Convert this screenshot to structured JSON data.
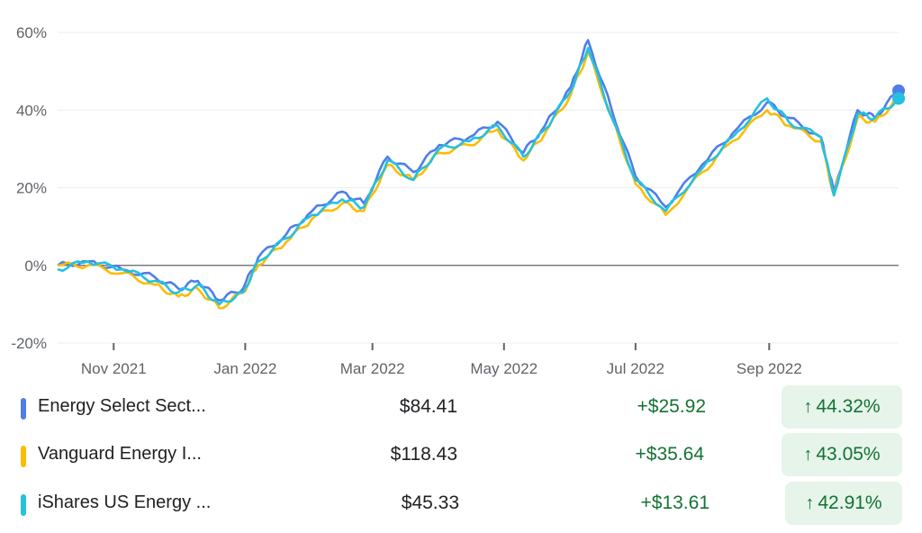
{
  "chart_data": {
    "type": "line",
    "ylim": [
      -20,
      60
    ],
    "y_ticks": [
      "60%",
      "40%",
      "20%",
      "0%",
      "-20%"
    ],
    "y_tick_values": [
      60,
      40,
      20,
      0,
      -20
    ],
    "x_ticks": [
      "Nov 2021",
      "Jan 2022",
      "Mar 2022",
      "May 2022",
      "Jul 2022",
      "Sep 2022"
    ],
    "x_tick_dates": [
      "2021-11-01",
      "2022-01-01",
      "2022-03-01",
      "2022-05-01",
      "2022-07-01",
      "2022-09-01"
    ],
    "x_range": [
      "2021-10-06",
      "2022-10-31"
    ],
    "grid": true,
    "series": [
      {
        "name": "Energy Select Sect...",
        "color": "#4f7ee8",
        "points": [
          [
            "2021-10-06",
            0
          ],
          [
            "2021-10-20",
            1
          ],
          [
            "2021-11-05",
            -1
          ],
          [
            "2021-11-20",
            -3
          ],
          [
            "2021-12-01",
            -6
          ],
          [
            "2021-12-10",
            -4
          ],
          [
            "2021-12-20",
            -9
          ],
          [
            "2021-12-31",
            -6
          ],
          [
            "2022-01-07",
            2
          ],
          [
            "2022-01-20",
            8
          ],
          [
            "2022-02-01",
            14
          ],
          [
            "2022-02-15",
            19
          ],
          [
            "2022-02-25",
            16
          ],
          [
            "2022-03-08",
            28
          ],
          [
            "2022-03-20",
            24
          ],
          [
            "2022-04-01",
            31
          ],
          [
            "2022-04-15",
            33
          ],
          [
            "2022-04-28",
            37
          ],
          [
            "2022-05-10",
            29
          ],
          [
            "2022-05-20",
            36
          ],
          [
            "2022-06-01",
            46
          ],
          [
            "2022-06-09",
            58
          ],
          [
            "2022-06-20",
            40
          ],
          [
            "2022-07-01",
            23
          ],
          [
            "2022-07-15",
            15
          ],
          [
            "2022-08-01",
            26
          ],
          [
            "2022-08-15",
            34
          ],
          [
            "2022-08-31",
            42
          ],
          [
            "2022-09-10",
            38
          ],
          [
            "2022-09-25",
            33
          ],
          [
            "2022-10-01",
            19
          ],
          [
            "2022-10-12",
            40
          ],
          [
            "2022-10-20",
            38
          ],
          [
            "2022-10-31",
            45
          ]
        ]
      },
      {
        "name": "Vanguard Energy I...",
        "color": "#fbbc04",
        "points": [
          [
            "2021-10-06",
            0
          ],
          [
            "2021-10-20",
            0
          ],
          [
            "2021-11-05",
            -2
          ],
          [
            "2021-11-20",
            -5
          ],
          [
            "2021-12-01",
            -8
          ],
          [
            "2021-12-10",
            -6
          ],
          [
            "2021-12-20",
            -11
          ],
          [
            "2021-12-31",
            -7
          ],
          [
            "2022-01-07",
            0
          ],
          [
            "2022-01-20",
            6
          ],
          [
            "2022-02-01",
            12
          ],
          [
            "2022-02-15",
            16
          ],
          [
            "2022-02-25",
            14
          ],
          [
            "2022-03-08",
            26
          ],
          [
            "2022-03-20",
            22
          ],
          [
            "2022-04-01",
            29
          ],
          [
            "2022-04-15",
            31
          ],
          [
            "2022-04-28",
            35
          ],
          [
            "2022-05-10",
            27
          ],
          [
            "2022-05-20",
            34
          ],
          [
            "2022-06-01",
            44
          ],
          [
            "2022-06-09",
            55
          ],
          [
            "2022-06-20",
            38
          ],
          [
            "2022-07-01",
            21
          ],
          [
            "2022-07-15",
            13
          ],
          [
            "2022-08-01",
            24
          ],
          [
            "2022-08-15",
            32
          ],
          [
            "2022-08-31",
            40
          ],
          [
            "2022-09-10",
            36
          ],
          [
            "2022-09-25",
            32
          ],
          [
            "2022-10-01",
            18
          ],
          [
            "2022-10-12",
            38
          ],
          [
            "2022-10-20",
            37
          ],
          [
            "2022-10-31",
            43
          ]
        ]
      },
      {
        "name": "iShares US Energy ...",
        "color": "#24c1e0",
        "points": [
          [
            "2021-10-06",
            -1
          ],
          [
            "2021-10-20",
            1
          ],
          [
            "2021-11-05",
            -1
          ],
          [
            "2021-11-20",
            -4
          ],
          [
            "2021-12-01",
            -7
          ],
          [
            "2021-12-10",
            -5
          ],
          [
            "2021-12-20",
            -10
          ],
          [
            "2021-12-31",
            -7
          ],
          [
            "2022-01-07",
            1
          ],
          [
            "2022-01-20",
            7
          ],
          [
            "2022-02-01",
            13
          ],
          [
            "2022-02-15",
            17
          ],
          [
            "2022-02-25",
            15
          ],
          [
            "2022-03-08",
            27
          ],
          [
            "2022-03-20",
            22
          ],
          [
            "2022-04-01",
            30
          ],
          [
            "2022-04-15",
            32
          ],
          [
            "2022-04-28",
            36
          ],
          [
            "2022-05-10",
            28
          ],
          [
            "2022-05-20",
            35
          ],
          [
            "2022-06-01",
            45
          ],
          [
            "2022-06-09",
            56
          ],
          [
            "2022-06-20",
            38
          ],
          [
            "2022-07-01",
            22
          ],
          [
            "2022-07-15",
            14
          ],
          [
            "2022-08-01",
            25
          ],
          [
            "2022-08-15",
            33
          ],
          [
            "2022-08-31",
            43
          ],
          [
            "2022-09-10",
            37
          ],
          [
            "2022-09-25",
            33
          ],
          [
            "2022-10-01",
            18
          ],
          [
            "2022-10-12",
            39
          ],
          [
            "2022-10-20",
            38
          ],
          [
            "2022-10-31",
            43
          ]
        ]
      }
    ]
  },
  "legend": [
    {
      "name": "Energy Select Sect...",
      "price": "$84.41",
      "change": "+$25.92",
      "percent": "44.32%",
      "color": "#4f7ee8"
    },
    {
      "name": "Vanguard Energy I...",
      "price": "$118.43",
      "change": "+$35.64",
      "percent": "43.05%",
      "color": "#fbbc04"
    },
    {
      "name": "iShares US Energy ...",
      "price": "$45.33",
      "change": "+$13.61",
      "percent": "42.91%",
      "color": "#24c1e0"
    }
  ],
  "icons": {
    "up_arrow": "arrow-up-icon"
  }
}
